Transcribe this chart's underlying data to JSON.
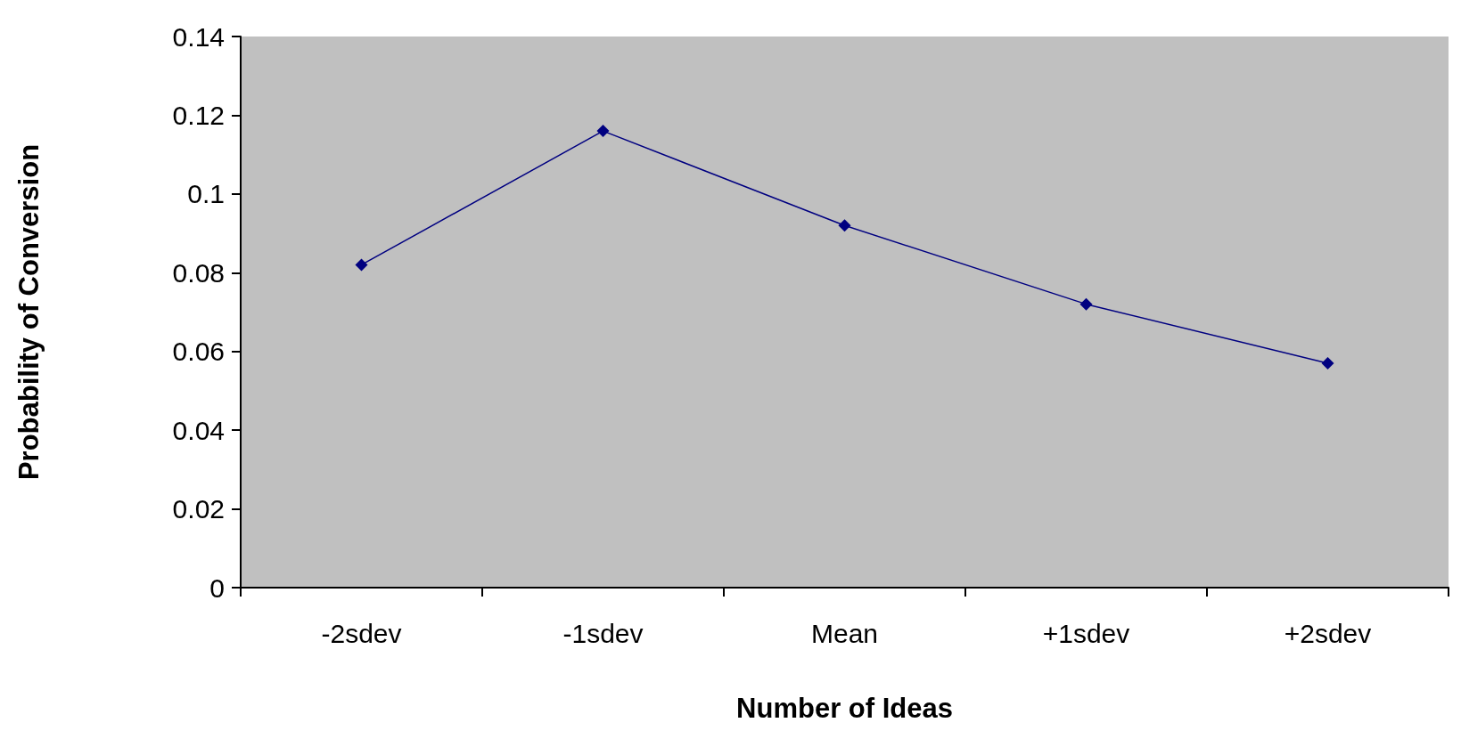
{
  "chart_data": {
    "type": "line",
    "xlabel": "Number of Ideas",
    "ylabel": "Probability of Conversion",
    "categories": [
      "-2sdev",
      "-1sdev",
      "Mean",
      "+1sdev",
      "+2sdev"
    ],
    "series": [
      {
        "color": "#000080",
        "values": [
          0.082,
          0.116,
          0.092,
          0.072,
          0.057
        ]
      }
    ],
    "ylim": [
      0,
      0.14
    ],
    "yticks": [
      0,
      0.02,
      0.04,
      0.06,
      0.08,
      0.1,
      0.12,
      0.14
    ],
    "grid": false,
    "marker": "diamond",
    "line_style": "solid"
  }
}
